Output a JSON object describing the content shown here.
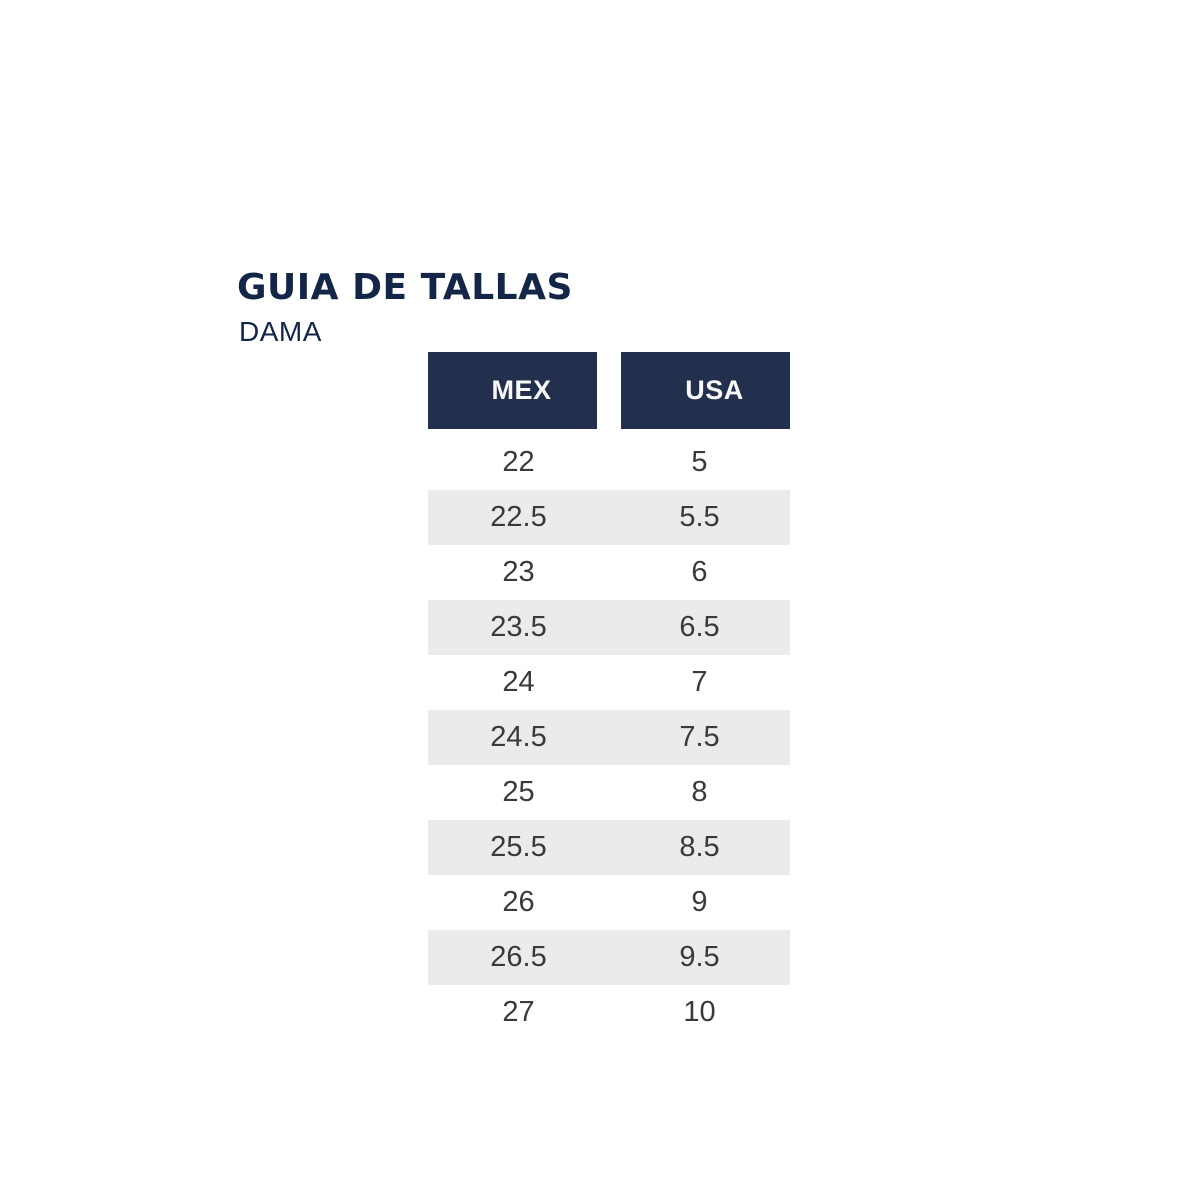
{
  "title": "GUIA DE TALLAS",
  "subtitle": "DAMA",
  "colors": {
    "background": "#ffffff",
    "title_text": "#132647",
    "header_bg": "#222f4d",
    "header_text": "#f8f8f8",
    "stripe_bg": "#ebebeb",
    "cell_text": "#3a3a3a"
  },
  "chart_data": {
    "type": "table",
    "title": "GUIA DE TALLAS",
    "subtitle": "DAMA",
    "columns": [
      "MEX",
      "USA"
    ],
    "rows": [
      [
        "22",
        "5"
      ],
      [
        "22.5",
        "5.5"
      ],
      [
        "23",
        "6"
      ],
      [
        "23.5",
        "6.5"
      ],
      [
        "24",
        "7"
      ],
      [
        "24.5",
        "7.5"
      ],
      [
        "25",
        "8"
      ],
      [
        "25.5",
        "8.5"
      ],
      [
        "26",
        "9"
      ],
      [
        "26.5",
        "9.5"
      ],
      [
        "27",
        "10"
      ]
    ],
    "layout": {
      "legend": "none",
      "grid": "none",
      "striped_rows": "half sizes shaded gray",
      "header_style": "two separate navy blocks with gap"
    }
  }
}
